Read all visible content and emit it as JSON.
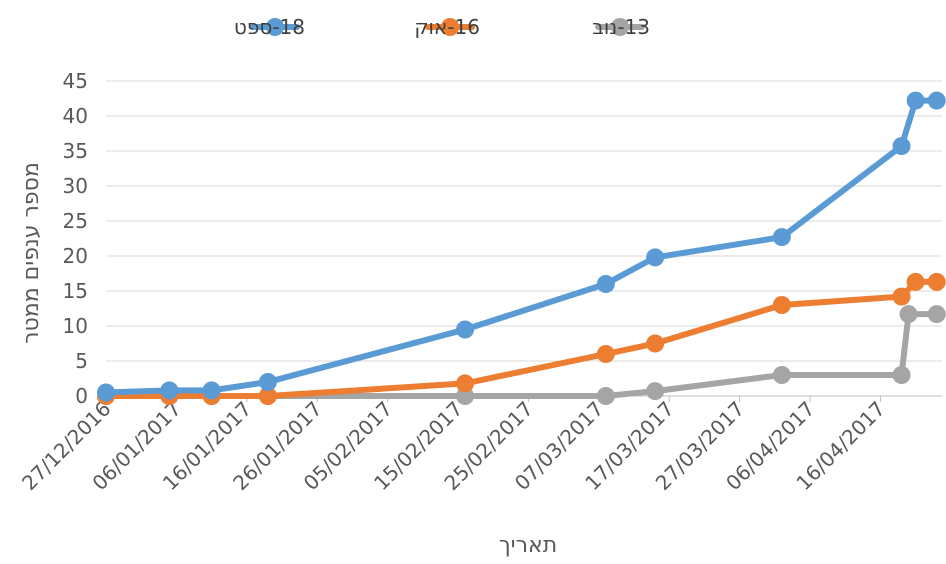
{
  "chart_data": {
    "type": "line",
    "xlabel": "תאריך",
    "ylabel": "מספר ענפים ממטר",
    "ylim": [
      0,
      45
    ],
    "yticks": [
      "0",
      "5",
      "10",
      "15",
      "20",
      "25",
      "30",
      "35",
      "40",
      "45"
    ],
    "x_axis": {
      "type": "date",
      "min": "2016-12-27",
      "max": "2017-04-24"
    },
    "xticks": [
      "27/12/2016",
      "06/01/2017",
      "16/01/2017",
      "26/01/2017",
      "05/02/2017",
      "15/02/2017",
      "25/02/2017",
      "07/03/2017",
      "17/03/2017",
      "27/03/2017",
      "06/04/2017",
      "16/04/2017"
    ],
    "legend_position": "top",
    "grid": "horizontal",
    "series": [
      {
        "name": "18-ספט",
        "color": "#5B9BD5",
        "points": [
          [
            "2016-12-27",
            0.5
          ],
          [
            "2017-01-05",
            0.8
          ],
          [
            "2017-01-11",
            0.8
          ],
          [
            "2017-01-19",
            2.0
          ],
          [
            "2017-02-16",
            9.5
          ],
          [
            "2017-03-08",
            16.0
          ],
          [
            "2017-03-15",
            19.8
          ],
          [
            "2017-04-02",
            22.7
          ],
          [
            "2017-04-19",
            35.7
          ],
          [
            "2017-04-21",
            42.2
          ],
          [
            "2017-04-24",
            42.2
          ]
        ]
      },
      {
        "name": "16-אוק",
        "color": "#ED7D31",
        "points": [
          [
            "2016-12-27",
            0
          ],
          [
            "2017-01-05",
            0
          ],
          [
            "2017-01-11",
            0
          ],
          [
            "2017-01-19",
            0
          ],
          [
            "2017-02-16",
            1.8
          ],
          [
            "2017-03-08",
            6.0
          ],
          [
            "2017-03-15",
            7.5
          ],
          [
            "2017-04-02",
            13.0
          ],
          [
            "2017-04-19",
            14.2
          ],
          [
            "2017-04-21",
            16.3
          ],
          [
            "2017-04-24",
            16.3
          ]
        ]
      },
      {
        "name": "13-נוב",
        "color": "#A5A5A5",
        "points": [
          [
            "2016-12-27",
            0
          ],
          [
            "2017-01-05",
            0
          ],
          [
            "2017-01-11",
            0
          ],
          [
            "2017-01-19",
            0
          ],
          [
            "2017-02-16",
            0
          ],
          [
            "2017-03-08",
            0
          ],
          [
            "2017-03-15",
            0.7
          ],
          [
            "2017-04-02",
            3.0
          ],
          [
            "2017-04-19",
            3.0
          ],
          [
            "2017-04-20",
            11.7
          ],
          [
            "2017-04-24",
            11.7
          ]
        ]
      }
    ]
  }
}
